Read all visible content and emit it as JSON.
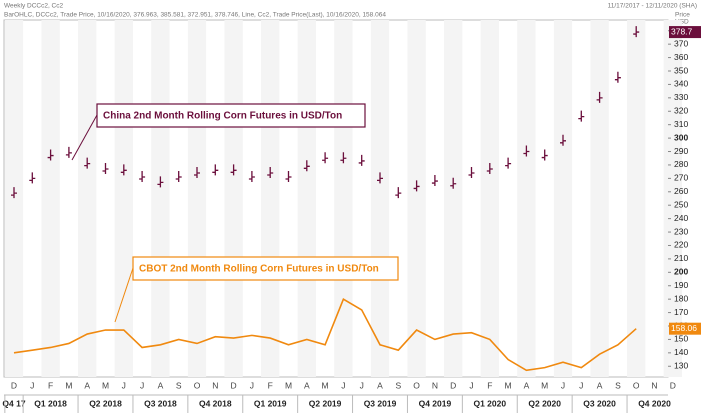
{
  "chart_data": {
    "type": "ohlc-line",
    "title": "Weekly DCCc2, Cc2",
    "date_range": "11/17/2017 - 12/11/2020 (SHA)",
    "subtitle": "BarOHLC, DCCc2, Trade Price, 10/16/2020, 376.963, 385.581, 372.951, 378.746, Line, Cc2, Trade Price(Last), 10/16/2020, 158.064",
    "y_axis_label": "Price",
    "y_axis_unit": "USD",
    "categories": [
      "D",
      "J",
      "F",
      "M",
      "A",
      "M",
      "J",
      "J",
      "A",
      "S",
      "O",
      "N",
      "D",
      "J",
      "F",
      "M",
      "A",
      "M",
      "J",
      "J",
      "A",
      "S",
      "O",
      "N",
      "D",
      "J",
      "F",
      "M",
      "A",
      "M",
      "J",
      "J",
      "A",
      "S",
      "O",
      "N",
      "D"
    ],
    "quarters": [
      "Q4 17",
      "Q1 2018",
      "Q2 2018",
      "Q3 2018",
      "Q4 2018",
      "Q1 2019",
      "Q2 2019",
      "Q3 2019",
      "Q4 2019",
      "Q1 2020",
      "Q2 2020",
      "Q3 2020",
      "Q4 2020"
    ],
    "series": [
      {
        "name": "China 2nd Month Rolling Corn Futures in USD/Ton",
        "color": "#6b0f3c",
        "style": "ohlc",
        "last_label": "378.7",
        "values": [
          259,
          270,
          287,
          289,
          281,
          277,
          276,
          271,
          267,
          271,
          274,
          276,
          276,
          271,
          274,
          271,
          279,
          285,
          285,
          283,
          270,
          259,
          264,
          268,
          266,
          274,
          277,
          281,
          290,
          287,
          298,
          316,
          330,
          345,
          379,
          null,
          null
        ]
      },
      {
        "name": "CBOT 2nd Month Rolling Corn Futures in USD/Ton",
        "color": "#f0890f",
        "style": "line",
        "last_label": "158.06",
        "values": [
          140,
          142,
          144,
          147,
          154,
          157,
          157,
          144,
          146,
          150,
          147,
          152,
          151,
          153,
          151,
          146,
          150,
          146,
          180,
          172,
          146,
          142,
          157,
          150,
          154,
          155,
          150,
          135,
          127,
          129,
          133,
          129,
          139,
          146,
          158,
          null,
          null
        ]
      }
    ],
    "ylim": [
      122,
      388
    ],
    "yticks": [
      130,
      140,
      150,
      160,
      170,
      180,
      190,
      200,
      210,
      220,
      230,
      240,
      250,
      260,
      270,
      280,
      290,
      300,
      310,
      320,
      330,
      340,
      350,
      360,
      370,
      380
    ]
  }
}
